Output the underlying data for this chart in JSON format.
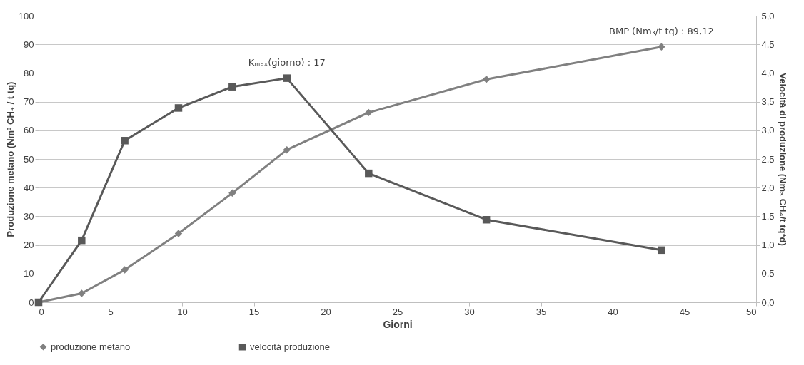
{
  "chart_data": {
    "type": "line",
    "xlabel": "Giorni",
    "ylabel": "Produzione metano (Nm³ CH₄ / t tq)",
    "y2label": "Velocità di produzione (Nm₃ CH₄/t tq*d)",
    "series": [
      {
        "name": "produzione metano",
        "color": "#808080",
        "marker": "diamond",
        "x": [
          0,
          3.0,
          6.0,
          9.75,
          13.5,
          17.3,
          23.0,
          31.2,
          43.4
        ],
        "values": [
          0,
          3.1,
          11.3,
          24.0,
          38.1,
          53.2,
          66.2,
          77.8,
          89.12
        ]
      },
      {
        "name": "velocità produzione",
        "color": "#595959",
        "marker": "square",
        "axis": "y2",
        "x": [
          0,
          3.0,
          6.0,
          9.75,
          13.5,
          17.3,
          23.0,
          31.2,
          43.4
        ],
        "values": [
          0,
          1.08,
          2.82,
          3.39,
          3.76,
          3.91,
          2.25,
          1.44,
          0.91
        ]
      }
    ],
    "annotations": [
      {
        "text": "Kₘₐₓ(giorno) : 17",
        "x": 17.3,
        "y": 78.2
      },
      {
        "text": "BMP (Nm₃/t tq) : 89,12",
        "x": 43.4,
        "y": 89.12
      }
    ],
    "xlim": [
      0,
      50
    ],
    "xticks": [
      0,
      5,
      10,
      15,
      20,
      25,
      30,
      35,
      40,
      45,
      50
    ],
    "ylim": [
      0,
      100
    ],
    "yticks": [
      0,
      10,
      20,
      30,
      40,
      50,
      60,
      70,
      80,
      90,
      100
    ],
    "y2lim": [
      0,
      5
    ],
    "y2ticks": [
      {
        "value": 0,
        "label": "0,0"
      },
      {
        "value": 0.5,
        "label": "0,5"
      },
      {
        "value": 1,
        "label": "1,0"
      },
      {
        "value": 1.5,
        "label": "1,5"
      },
      {
        "value": 2,
        "label": "2,0"
      },
      {
        "value": 2.5,
        "label": "2,5"
      },
      {
        "value": 3,
        "label": "3,0"
      },
      {
        "value": 3.5,
        "label": "3,5"
      },
      {
        "value": 4,
        "label": "4,0"
      },
      {
        "value": 4.5,
        "label": "4,5"
      },
      {
        "value": 5,
        "label": "5,0"
      }
    ],
    "grid": "y",
    "legend": "bottom",
    "line_style": "solid"
  }
}
